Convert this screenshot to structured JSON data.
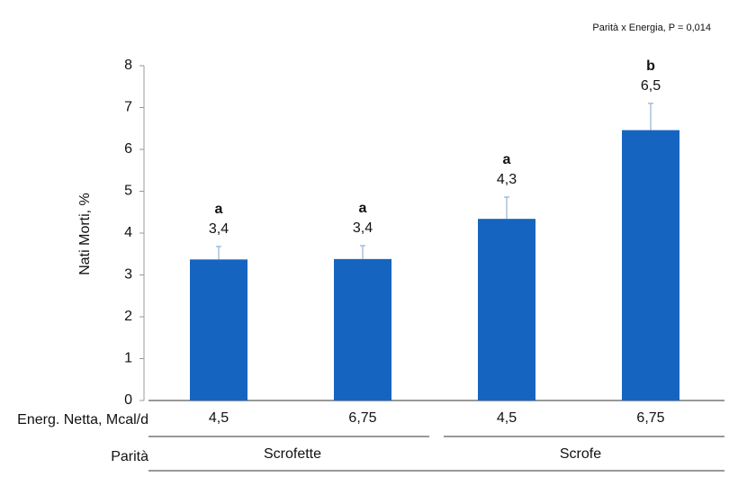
{
  "chart_data": {
    "type": "bar",
    "annotation": "Parità x Energia, P = 0,014",
    "ylabel": "Nati Morti, %",
    "xlabel": "Energ. Netta, Mcal/d",
    "group_label": "Parità",
    "categories": [
      "4,5",
      "6,75",
      "4,5",
      "6,75"
    ],
    "groups": [
      "Scrofette",
      "Scrofe"
    ],
    "values": [
      3.37,
      3.38,
      4.34,
      6.46
    ],
    "value_labels": [
      "3,4",
      "3,4",
      "4,3",
      "6,5"
    ],
    "errors": [
      0.31,
      0.32,
      0.52,
      0.64
    ],
    "letters": [
      "a",
      "a",
      "a",
      "b"
    ],
    "color": "#1565c0",
    "error_color": "#7fa3c6",
    "ylim": [
      0,
      8
    ],
    "yticks": [
      0,
      1,
      2,
      3,
      4,
      5,
      6,
      7,
      8
    ]
  }
}
